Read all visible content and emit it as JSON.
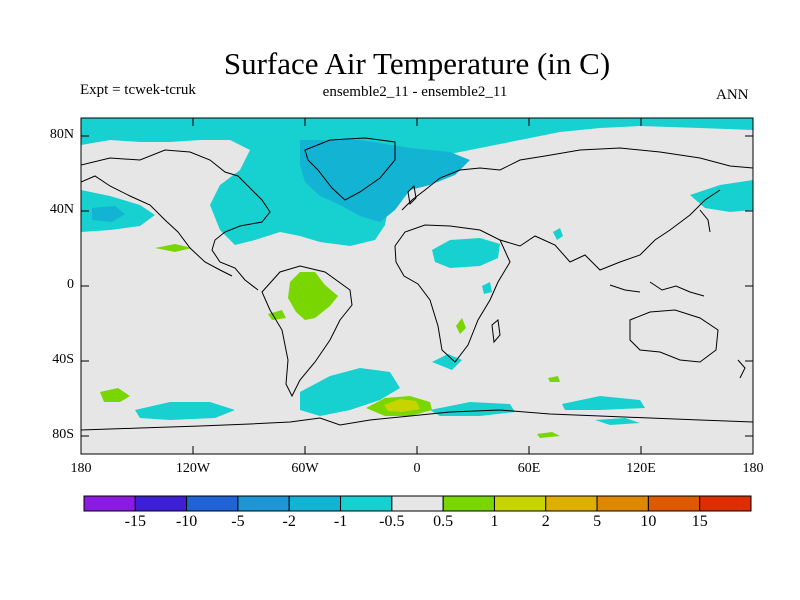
{
  "title": "Surface Air Temperature (in C)",
  "experiment": "Expt = tcwek-tcruk",
  "subtitle": "ensemble2_11 - ensemble2_11",
  "season": "ANN",
  "map": {
    "lat_labels": [
      "80N",
      "40N",
      "0",
      "40S",
      "80S"
    ],
    "lon_labels": [
      "180",
      "120W",
      "60W",
      "0",
      "60E",
      "120E",
      "180"
    ],
    "background_color": "#e6e6e6",
    "coast_color": "#000000"
  },
  "colorbar": {
    "colors": [
      "#8a1be0",
      "#3d1fd6",
      "#1f63d6",
      "#1e95d4",
      "#13b3d4",
      "#17d0d0",
      "#e6e6e6",
      "#7ad600",
      "#c8d400",
      "#ddb000",
      "#dd8800",
      "#dd5a00",
      "#dd2e00"
    ],
    "labels": [
      "-15",
      "-10",
      "-5",
      "-2",
      "-1",
      "-0.5",
      "0.5",
      "1",
      "2",
      "5",
      "10",
      "15"
    ]
  }
}
